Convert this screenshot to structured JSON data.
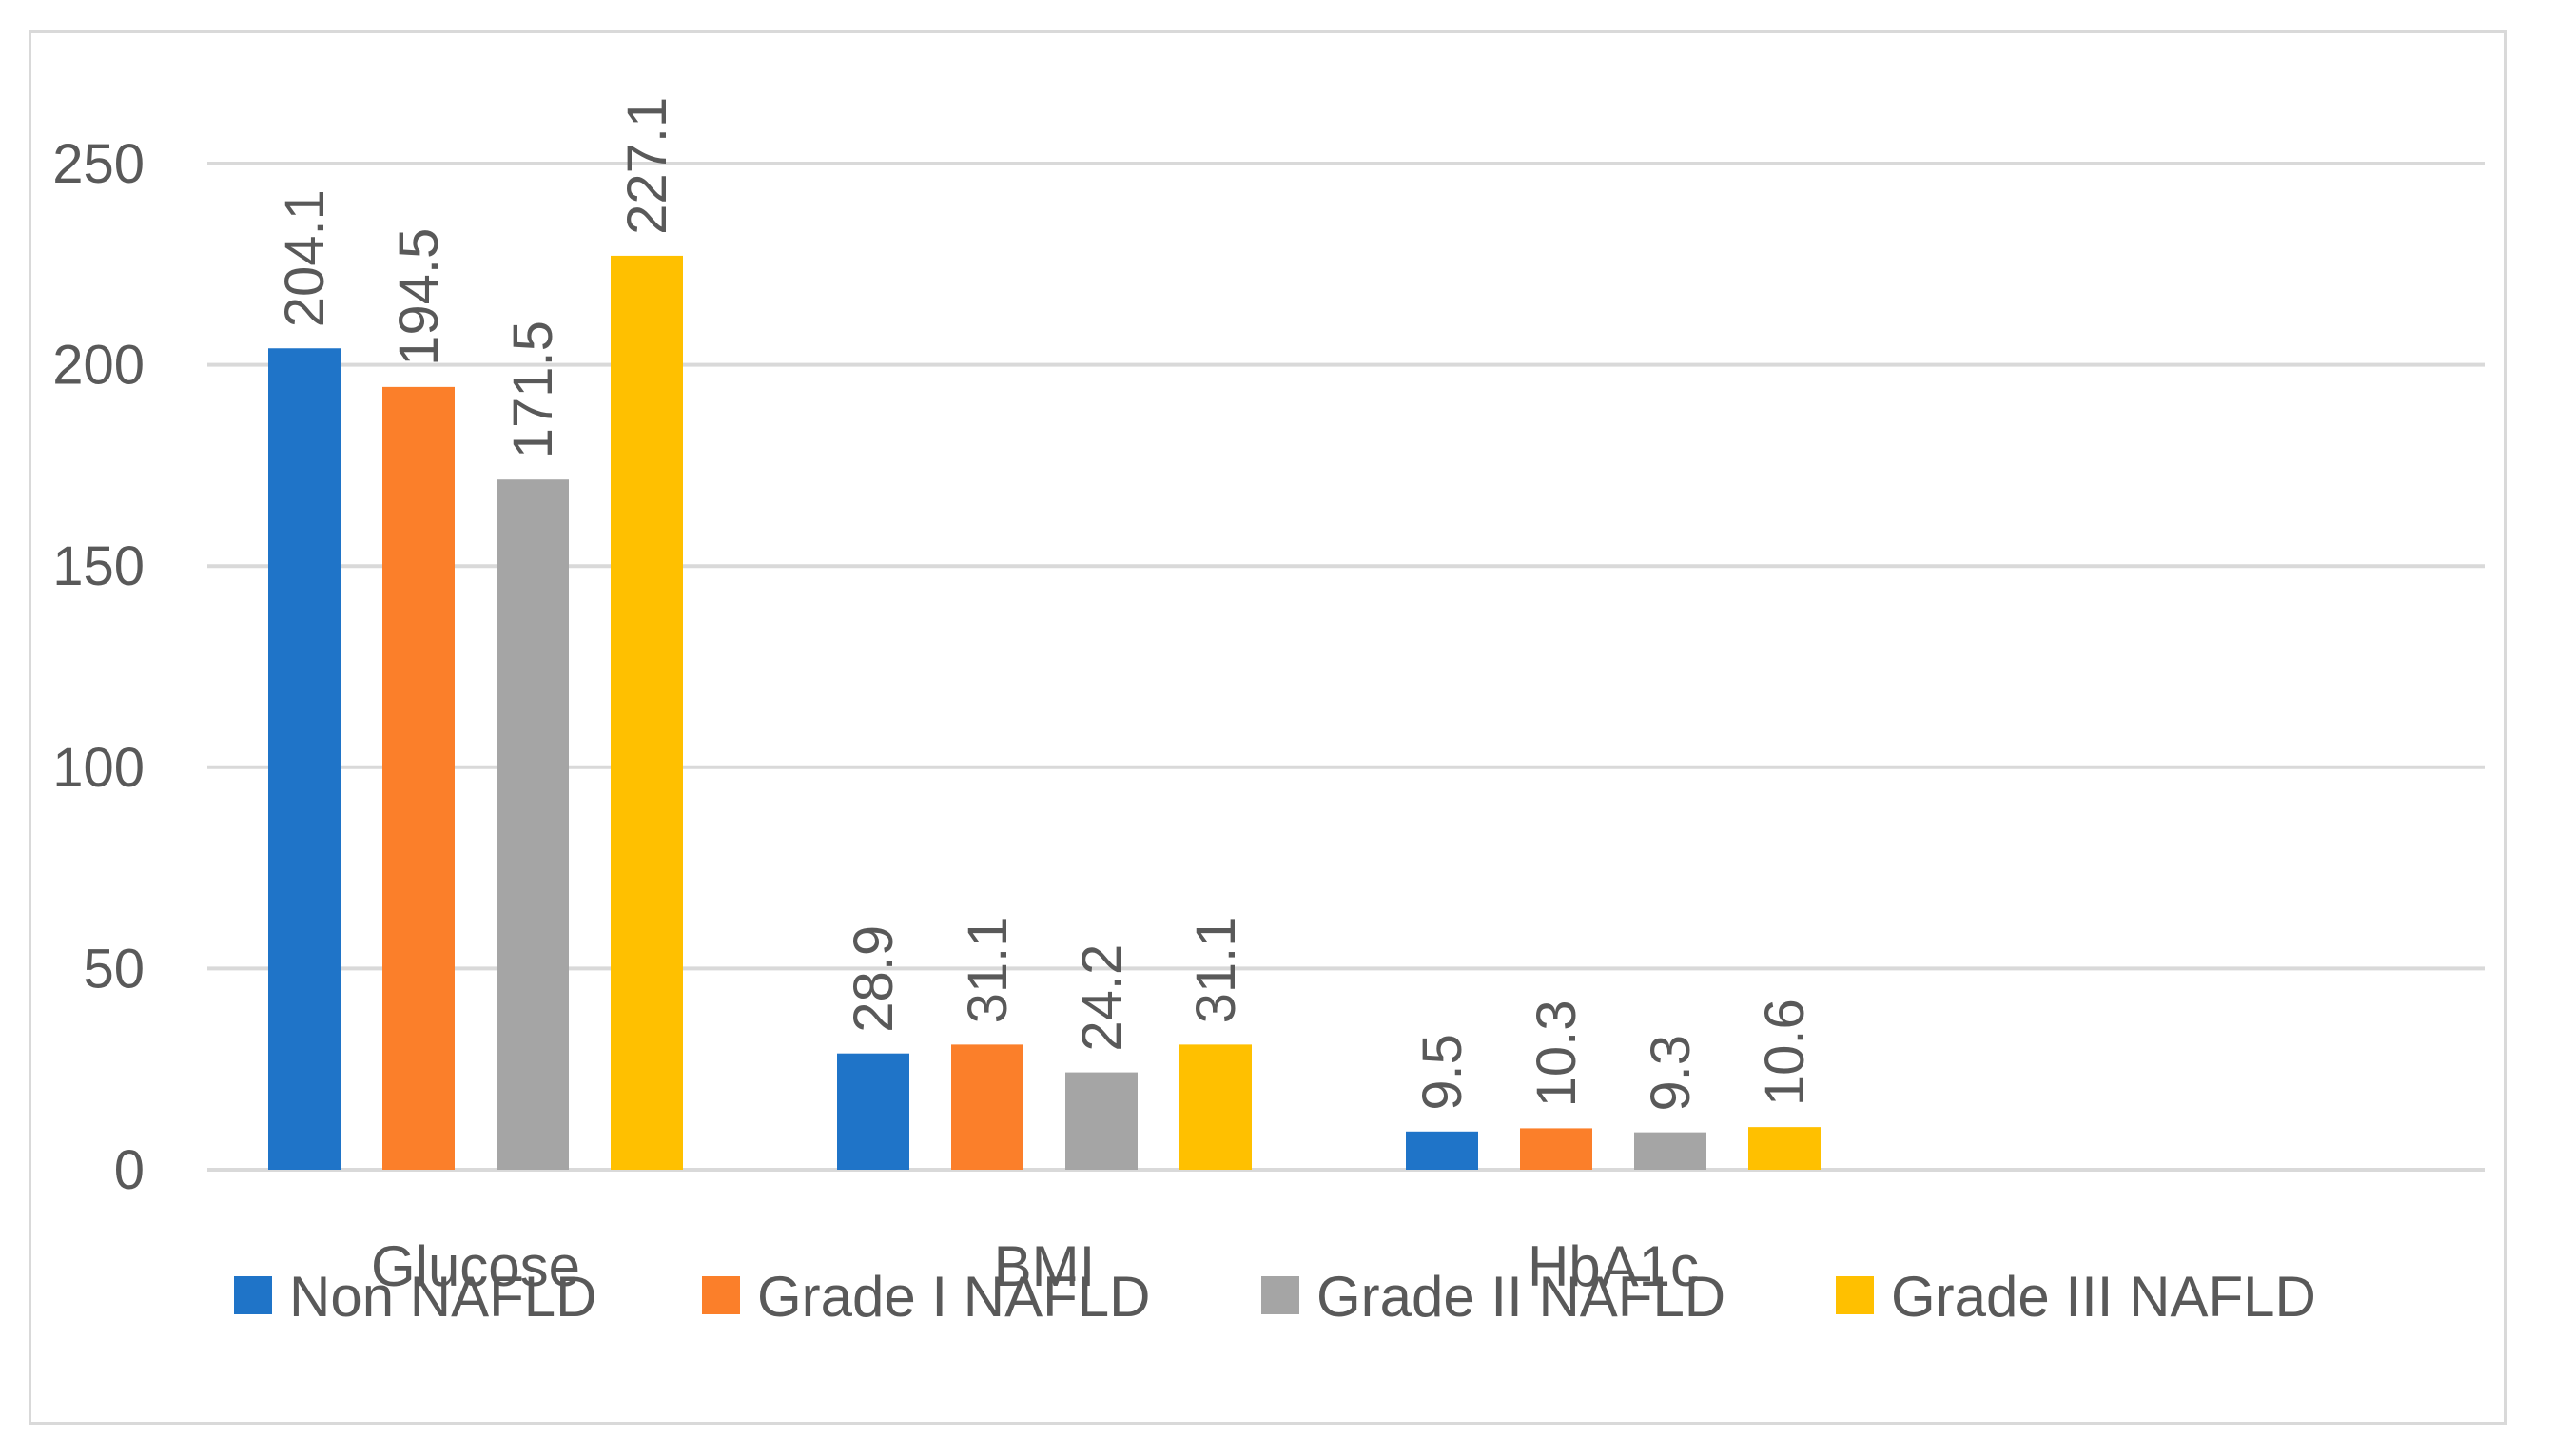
{
  "chart_data": {
    "type": "bar",
    "title": "",
    "xlabel": "",
    "ylabel": "",
    "ylim": [
      0,
      250
    ],
    "yticks": [
      0,
      50,
      100,
      150,
      200,
      250
    ],
    "grid": true,
    "legend_position": "bottom",
    "categories": [
      "Glucose",
      "BMI",
      "HbA1c"
    ],
    "series": [
      {
        "name": "Non NAFLD",
        "color": "#1f74c8",
        "values": [
          204.1,
          28.9,
          9.5
        ],
        "labels": [
          "204.1",
          "28.9",
          "9.5"
        ]
      },
      {
        "name": "Grade I NAFLD",
        "color": "#fb7f2a",
        "values": [
          194.5,
          31.1,
          10.3
        ],
        "labels": [
          "194.5",
          "31.1",
          "10.3"
        ]
      },
      {
        "name": "Grade II NAFLD",
        "color": "#a5a5a5",
        "values": [
          171.5,
          24.2,
          9.3
        ],
        "labels": [
          "171.5",
          "24.2",
          "9.3"
        ]
      },
      {
        "name": "Grade III NAFLD",
        "color": "#ffc000",
        "values": [
          227.1,
          31.1,
          10.6
        ],
        "labels": [
          "227.1",
          "31.1",
          "10.6"
        ]
      }
    ]
  }
}
